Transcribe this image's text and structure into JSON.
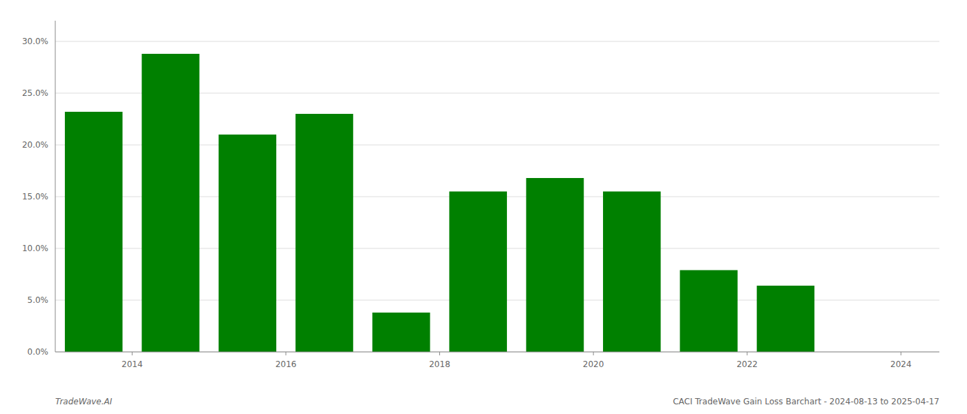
{
  "chart_data": {
    "type": "bar",
    "x": [
      2013.5,
      2014.5,
      2015.5,
      2016.5,
      2017.5,
      2018.5,
      2019.5,
      2020.5,
      2021.5,
      2022.5,
      2023.5
    ],
    "values": [
      0.232,
      0.288,
      0.21,
      0.23,
      0.038,
      0.155,
      0.168,
      0.155,
      0.079,
      0.064,
      0.0
    ],
    "color": "#008000",
    "xlim": [
      2013.0,
      2024.5
    ],
    "xticks": [
      2014,
      2016,
      2018,
      2020,
      2022,
      2024
    ],
    "ylim": [
      0,
      0.32
    ],
    "yticks": [
      {
        "value": 0.0,
        "label": "0.0%"
      },
      {
        "value": 0.05,
        "label": "5.0%"
      },
      {
        "value": 0.1,
        "label": "10.0%"
      },
      {
        "value": 0.15,
        "label": "15.0%"
      },
      {
        "value": 0.2,
        "label": "20.0%"
      },
      {
        "value": 0.25,
        "label": "25.0%"
      },
      {
        "value": 0.3,
        "label": "30.0%"
      }
    ],
    "grid": true,
    "annotations": [
      "TradeWave.AI",
      "CACI TradeWave Gain Loss Barchart - 2024-08-13 to 2025-04-17"
    ]
  }
}
